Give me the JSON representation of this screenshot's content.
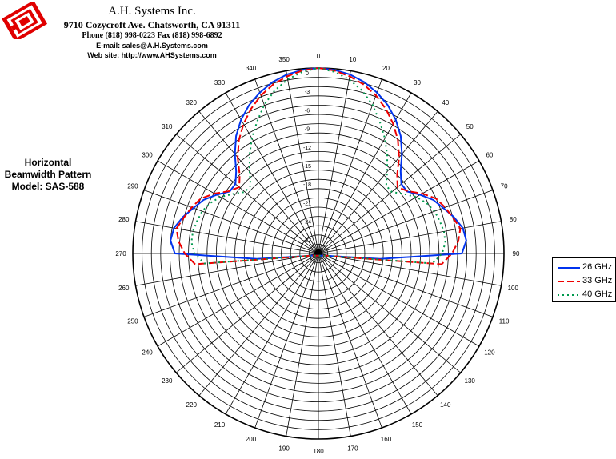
{
  "header": {
    "company": "A.H. Systems Inc.",
    "address": "9710 Cozycroft Ave. Chatsworth, CA 91311",
    "phone": "Phone (818) 998-0223 Fax (818) 998-6892",
    "email": "E-mail:  sales@A.H.Systems.com",
    "website": "Web site:  http://www.AHSystems.com"
  },
  "chart_title": {
    "line1": "Horizontal",
    "line2": "Beamwidth Pattern",
    "line3": "Model: SAS-588"
  },
  "chart_data": {
    "type": "polar-line",
    "angle_unit": "degrees",
    "angle_zero": "top",
    "angle_direction": "clockwise",
    "angle_ticks": [
      0,
      10,
      20,
      30,
      40,
      50,
      60,
      70,
      80,
      90,
      100,
      110,
      120,
      130,
      140,
      150,
      160,
      170,
      180,
      190,
      200,
      210,
      220,
      230,
      240,
      250,
      260,
      270,
      280,
      290,
      300,
      310,
      320,
      330,
      340,
      350
    ],
    "radial_unit": "dB",
    "radial_range": [
      -30,
      0
    ],
    "radial_ticks": [
      0,
      -3,
      -6,
      -9,
      -12,
      -15,
      -18,
      -21,
      -24,
      -27
    ],
    "radial_tick_labels": [
      "0",
      "-3",
      "-6",
      "-9",
      "-12",
      "-15",
      "-18",
      "-21",
      "-24",
      "-27"
    ],
    "grid": true,
    "legend": "right",
    "series": [
      {
        "name": "26 GHz",
        "color": "#0033ee",
        "dash": "solid",
        "angles": [
          0,
          5,
          10,
          15,
          20,
          25,
          30,
          35,
          40,
          45,
          50,
          55,
          60,
          65,
          70,
          75,
          80,
          85,
          90,
          95,
          100,
          105,
          110,
          115,
          120
        ],
        "values": [
          0,
          -0.2,
          -0.6,
          -1.3,
          -2.3,
          -3.5,
          -5.0,
          -6.8,
          -9.0,
          -11.2,
          -12.5,
          -12.5,
          -11.0,
          -9.5,
          -8.5,
          -7.3,
          -6.3,
          -6.0,
          -6.8,
          -20.0,
          -27.5,
          -28.6,
          -29.0,
          -29.2,
          -29.3
        ]
      },
      {
        "name": "33 GHz",
        "color": "#ee0000",
        "dash": "long-dash",
        "angles": [
          0,
          5,
          10,
          15,
          20,
          25,
          30,
          35,
          40,
          45,
          50,
          55,
          60,
          65,
          70,
          75,
          80,
          85,
          90,
          95,
          100,
          105,
          110,
          115,
          120
        ],
        "values": [
          0,
          -0.3,
          -0.9,
          -1.7,
          -2.8,
          -4.2,
          -5.8,
          -7.6,
          -9.7,
          -12.0,
          -13.3,
          -12.4,
          -10.6,
          -9.0,
          -8.2,
          -7.5,
          -6.7,
          -7.3,
          -8.4,
          -10.0,
          -27.3,
          -28.6,
          -29.0,
          -29.2,
          -29.3
        ]
      },
      {
        "name": "40 GHz",
        "color": "#00994d",
        "dash": "dotted",
        "angles": [
          0,
          5,
          10,
          15,
          20,
          25,
          30,
          35,
          40,
          45,
          50,
          55,
          60,
          65,
          70,
          75,
          80,
          85,
          90,
          95,
          100,
          105,
          110,
          115,
          120
        ],
        "values": [
          0,
          -0.5,
          -1.4,
          -2.7,
          -4.4,
          -6.5,
          -8.5,
          -10.6,
          -12.7,
          -14.5,
          -14.5,
          -13.2,
          -11.7,
          -10.7,
          -10.0,
          -9.7,
          -9.4,
          -9.4,
          -10.0,
          -11.5,
          -27.5,
          -28.6,
          -29.0,
          -29.2,
          -29.3
        ]
      }
    ]
  }
}
